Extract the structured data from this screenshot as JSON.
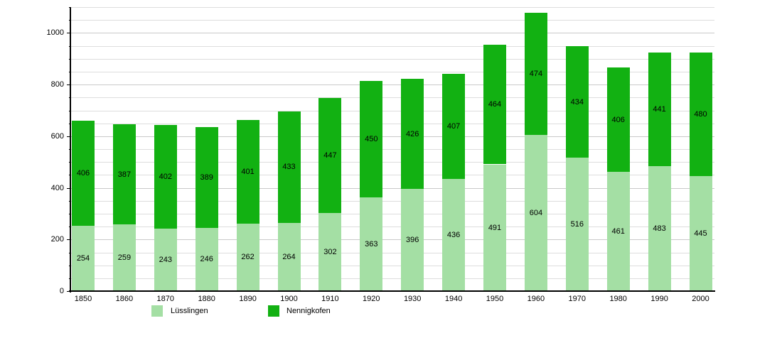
{
  "chart_data": {
    "type": "bar",
    "stacked": true,
    "title": "",
    "xlabel": "",
    "ylabel": "",
    "categories": [
      "1850",
      "1860",
      "1870",
      "1880",
      "1890",
      "1900",
      "1910",
      "1920",
      "1930",
      "1940",
      "1950",
      "1960",
      "1970",
      "1980",
      "1990",
      "2000"
    ],
    "series": [
      {
        "name": "Lüsslingen",
        "color": "#a4dfa4",
        "values": [
          254,
          259,
          243,
          246,
          262,
          264,
          302,
          363,
          396,
          436,
          491,
          604,
          516,
          461,
          483,
          445
        ]
      },
      {
        "name": "Nennigkofen",
        "color": "#12b112",
        "values": [
          406,
          387,
          402,
          389,
          401,
          433,
          447,
          450,
          426,
          407,
          464,
          474,
          434,
          406,
          441,
          480
        ]
      }
    ],
    "totals": [
      660,
      646,
      645,
      635,
      663,
      697,
      749,
      813,
      822,
      843,
      955,
      1078,
      950,
      867,
      924,
      925
    ],
    "ylim": [
      0,
      1100
    ],
    "yticks_labeled": [
      0,
      200,
      400,
      600,
      800,
      1000
    ],
    "ytick_minor_step": 50,
    "grid": true,
    "bar_value_labels": true,
    "legend_position": "bottom"
  },
  "legend": {
    "items": [
      {
        "label": "Lüsslingen",
        "color": "#a4dfa4"
      },
      {
        "label": "Nennigkofen",
        "color": "#12b112"
      }
    ]
  },
  "colors": {
    "background": "#ffffff",
    "axis": "#000000",
    "gridline_minor": "#dddddd",
    "gridline_major": "#c9c9c9",
    "bar_label_text": "#000000"
  }
}
